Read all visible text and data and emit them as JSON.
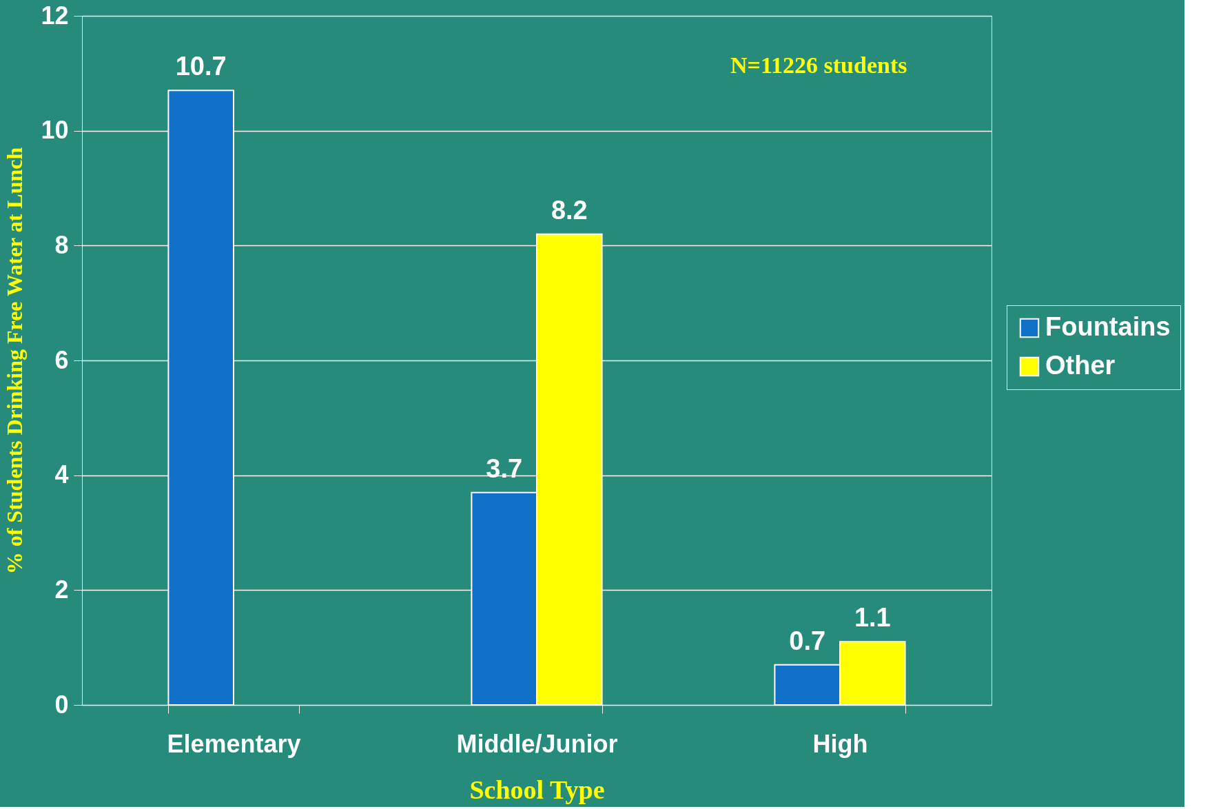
{
  "chart_data": {
    "type": "bar",
    "xlabel": "School Type",
    "ylabel": "% of Students Drinking Free Water  at Lunch",
    "categories": [
      "Elementary",
      "Middle/Junior",
      "High"
    ],
    "series": [
      {
        "name": "Fountains",
        "color": "#1170c8",
        "values": [
          10.7,
          3.7,
          0.7
        ]
      },
      {
        "name": "Other",
        "color": "#ffff00",
        "values": [
          null,
          8.2,
          1.1
        ]
      }
    ],
    "ylim": [
      0,
      12
    ],
    "yticks": [
      0,
      2,
      4,
      6,
      8,
      10,
      12
    ],
    "grid": "y",
    "legend": "right",
    "data_labels": true,
    "annotations": [
      "N=11226 students"
    ]
  }
}
